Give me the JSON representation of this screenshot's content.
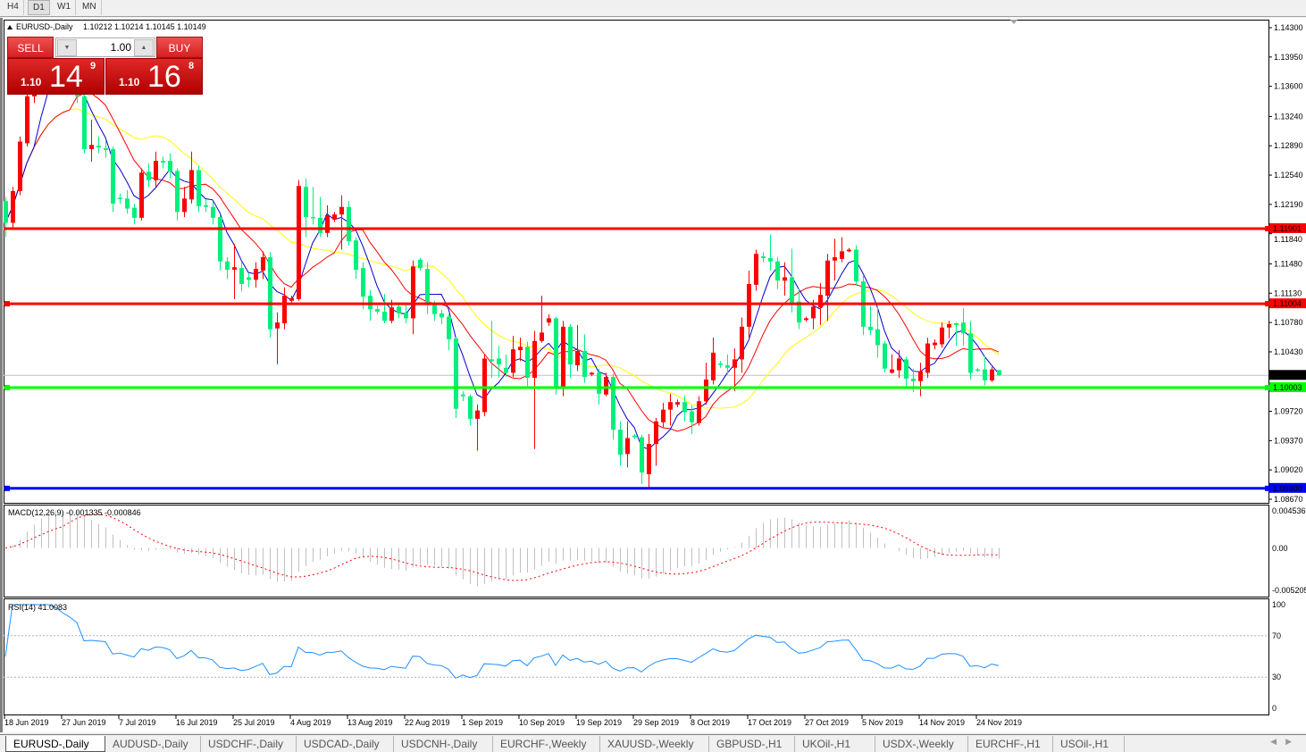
{
  "toolbar": {
    "timeframes": [
      {
        "label": "H4",
        "selected": false
      },
      {
        "label": "D1",
        "selected": true
      },
      {
        "label": "W1",
        "selected": false
      },
      {
        "label": "MN",
        "selected": false
      }
    ]
  },
  "chart": {
    "title": "EURUSD-,Daily",
    "ohlc_text": "1.10212 1.10214 1.10145 1.10149",
    "colors": {
      "bull": "#ff0000",
      "bear": "#00f07c",
      "ma_fast": "#0000cc",
      "ma_mid": "#ff0000",
      "ma_slow": "#ffff00",
      "macd_hist": "#c0c0c0",
      "macd_signal": "#ff0000",
      "rsi": "#1e90ff"
    },
    "price_axis": {
      "max": 1.143,
      "min": 1.0867,
      "ticks": [
        "1.14300",
        "1.13950",
        "1.13600",
        "1.13240",
        "1.12890",
        "1.12540",
        "1.12190",
        "1.11840",
        "1.11480",
        "1.11130",
        "1.10780",
        "1.10430",
        "1.09720",
        "1.09370",
        "1.09020",
        "1.08670"
      ]
    },
    "levels": [
      {
        "price": "1.11901",
        "color": "#ff0000",
        "text_color": "#ffffff"
      },
      {
        "price": "1.11004",
        "color": "#ff0000",
        "text_color": "#ffffff"
      },
      {
        "price": "1.10003",
        "color": "#00ff00",
        "text_color": "#ffffff"
      },
      {
        "price": "1.08800",
        "color": "#0000ff",
        "text_color": "#ffffff"
      }
    ],
    "bid": {
      "price": "1.10149",
      "color": "#000000"
    },
    "dates": [
      "18 Jun 2019",
      "27 Jun 2019",
      "7 Jul 2019",
      "16 Jul 2019",
      "25 Jul 2019",
      "4 Aug 2019",
      "13 Aug 2019",
      "22 Aug 2019",
      "1 Sep 2019",
      "10 Sep 2019",
      "19 Sep 2019",
      "29 Sep 2019",
      "8 Oct 2019",
      "17 Oct 2019",
      "27 Oct 2019",
      "5 Nov 2019",
      "14 Nov 2019",
      "24 Nov 2019"
    ],
    "macd": {
      "label": "MACD(12,26,9) -0.001335 -0.000846",
      "axis_top": "0.004536",
      "axis_zero": "0.00",
      "axis_bottom": "-0.005205",
      "max": 0.004536,
      "min": -0.005205
    },
    "rsi": {
      "label": "RSI(14) 41.0083",
      "axis": [
        "100",
        "70",
        "30",
        "0"
      ]
    }
  },
  "trade_panel": {
    "sell_label": "SELL",
    "buy_label": "BUY",
    "lot": "1.00",
    "sell": {
      "prefix": "1.10",
      "big": "14",
      "sup": "9"
    },
    "buy": {
      "prefix": "1.10",
      "big": "16",
      "sup": "8"
    }
  },
  "chart_data": {
    "type": "candlestick",
    "symbol": "EURUSD-",
    "timeframe": "Daily",
    "candles": [
      [
        1.1223,
        1.1228,
        1.118,
        1.1197
      ],
      [
        1.1197,
        1.124,
        1.119,
        1.1235
      ],
      [
        1.1235,
        1.13,
        1.123,
        1.1294
      ],
      [
        1.1292,
        1.1355,
        1.1288,
        1.1348
      ],
      [
        1.1348,
        1.1375,
        1.134,
        1.1362
      ],
      [
        1.1362,
        1.139,
        1.1355,
        1.1378
      ],
      [
        1.1378,
        1.1398,
        1.137,
        1.1388
      ],
      [
        1.1388,
        1.1395,
        1.1375,
        1.1383
      ],
      [
        1.1383,
        1.139,
        1.1365,
        1.1372
      ],
      [
        1.1372,
        1.1378,
        1.1355,
        1.1362
      ],
      [
        1.1362,
        1.1368,
        1.134,
        1.1348
      ],
      [
        1.1348,
        1.1352,
        1.128,
        1.1285
      ],
      [
        1.1285,
        1.132,
        1.127,
        1.129
      ],
      [
        1.1289,
        1.13,
        1.128,
        1.1287
      ],
      [
        1.1286,
        1.1295,
        1.1275,
        1.1284
      ],
      [
        1.1285,
        1.1288,
        1.121,
        1.122
      ],
      [
        1.1227,
        1.1232,
        1.122,
        1.1226
      ],
      [
        1.1226,
        1.1236,
        1.1208,
        1.1214
      ],
      [
        1.1215,
        1.122,
        1.1195,
        1.1203
      ],
      [
        1.1203,
        1.1262,
        1.12,
        1.1257
      ],
      [
        1.1258,
        1.1268,
        1.124,
        1.1248
      ],
      [
        1.1248,
        1.1282,
        1.124,
        1.1271
      ],
      [
        1.1271,
        1.1276,
        1.1262,
        1.1269
      ],
      [
        1.1271,
        1.128,
        1.125,
        1.1258
      ],
      [
        1.1259,
        1.1262,
        1.12,
        1.121
      ],
      [
        1.121,
        1.124,
        1.1204,
        1.1226
      ],
      [
        1.1225,
        1.1282,
        1.122,
        1.126
      ],
      [
        1.126,
        1.1265,
        1.121,
        1.1217
      ],
      [
        1.1218,
        1.1225,
        1.121,
        1.1216
      ],
      [
        1.1216,
        1.1222,
        1.1195,
        1.1203
      ],
      [
        1.1204,
        1.1206,
        1.114,
        1.1151
      ],
      [
        1.1151,
        1.1156,
        1.113,
        1.1141
      ],
      [
        1.1141,
        1.1172,
        1.1106,
        1.1144
      ],
      [
        1.1143,
        1.115,
        1.1115,
        1.1124
      ],
      [
        1.1132,
        1.1137,
        1.112,
        1.1129
      ],
      [
        1.1129,
        1.115,
        1.112,
        1.1142
      ],
      [
        1.114,
        1.1163,
        1.113,
        1.1156
      ],
      [
        1.1156,
        1.1162,
        1.106,
        1.107
      ],
      [
        1.1071,
        1.109,
        1.1028,
        1.1078
      ],
      [
        1.1077,
        1.112,
        1.107,
        1.111
      ],
      [
        1.1104,
        1.111,
        1.1102,
        1.1107
      ],
      [
        1.1106,
        1.1248,
        1.1104,
        1.1241
      ],
      [
        1.124,
        1.125,
        1.118,
        1.1204
      ],
      [
        1.1204,
        1.124,
        1.1195,
        1.1203
      ],
      [
        1.1203,
        1.1228,
        1.118,
        1.1185
      ],
      [
        1.1185,
        1.1218,
        1.118,
        1.1206
      ],
      [
        1.1201,
        1.121,
        1.1198,
        1.1207
      ],
      [
        1.1207,
        1.123,
        1.1165,
        1.1216
      ],
      [
        1.1216,
        1.1223,
        1.117,
        1.1175
      ],
      [
        1.1176,
        1.118,
        1.113,
        1.1141
      ],
      [
        1.1143,
        1.115,
        1.1094,
        1.1109
      ],
      [
        1.111,
        1.1117,
        1.108,
        1.1094
      ],
      [
        1.1094,
        1.1098,
        1.1088,
        1.1091
      ],
      [
        1.1091,
        1.1112,
        1.1077,
        1.108
      ],
      [
        1.108,
        1.1105,
        1.1077,
        1.1096
      ],
      [
        1.1097,
        1.1102,
        1.1083,
        1.1089
      ],
      [
        1.109,
        1.1102,
        1.1077,
        1.1083
      ],
      [
        1.1083,
        1.1152,
        1.1064,
        1.1145
      ],
      [
        1.1153,
        1.1155,
        1.114,
        1.1143
      ],
      [
        1.1142,
        1.115,
        1.1088,
        1.1099
      ],
      [
        1.1099,
        1.1104,
        1.108,
        1.1088
      ],
      [
        1.1089,
        1.1093,
        1.1076,
        1.1084
      ],
      [
        1.1085,
        1.1088,
        1.1045,
        1.1058
      ],
      [
        1.1059,
        1.106,
        1.0964,
        1.0975
      ],
      [
        1.0992,
        1.0996,
        1.0984,
        1.099
      ],
      [
        1.099,
        1.0992,
        1.0955,
        1.0963
      ],
      [
        1.0963,
        1.098,
        1.0925,
        1.0973
      ],
      [
        1.0971,
        1.104,
        1.0966,
        1.1035
      ],
      [
        1.1034,
        1.108,
        1.1012,
        1.1032
      ],
      [
        1.1035,
        1.105,
        1.1012,
        1.1028
      ],
      [
        1.1024,
        1.104,
        1.1013,
        1.1018
      ],
      [
        1.1018,
        1.1062,
        1.1013,
        1.1046
      ],
      [
        1.1045,
        1.106,
        1.1032,
        1.1049
      ],
      [
        1.1049,
        1.1055,
        1.1,
        1.1012
      ],
      [
        1.1012,
        1.1068,
        1.0927,
        1.1056
      ],
      [
        1.1056,
        1.111,
        1.1054,
        1.1066
      ],
      [
        1.1078,
        1.1088,
        1.1074,
        1.1083
      ],
      [
        1.1083,
        1.1085,
        1.0992,
        1.1001
      ],
      [
        1.1001,
        1.108,
        1.099,
        1.1073
      ],
      [
        1.1073,
        1.1076,
        1.1012,
        1.1028
      ],
      [
        1.1027,
        1.1075,
        1.102,
        1.1044
      ],
      [
        1.1044,
        1.1064,
        1.1006,
        1.1013
      ],
      [
        1.1016,
        1.1019,
        1.1014,
        1.1018
      ],
      [
        1.1018,
        1.1023,
        1.098,
        1.0993
      ],
      [
        1.0992,
        1.1018,
        1.099,
        1.1013
      ],
      [
        1.1013,
        1.1017,
        1.0938,
        1.095
      ],
      [
        1.095,
        1.096,
        1.0907,
        1.092
      ],
      [
        1.0921,
        1.096,
        1.0905,
        1.094
      ],
      [
        1.0943,
        1.0945,
        1.0939,
        1.0941
      ],
      [
        1.0941,
        1.0944,
        1.0885,
        1.0899
      ],
      [
        1.0897,
        1.0945,
        1.0879,
        1.0933
      ],
      [
        1.0933,
        1.0964,
        1.0907,
        1.096
      ],
      [
        1.0959,
        1.0982,
        1.0953,
        1.0974
      ],
      [
        1.0974,
        1.0993,
        1.0955,
        1.0983
      ],
      [
        1.098,
        1.0986,
        1.0977,
        1.0983
      ],
      [
        1.0983,
        1.0991,
        1.096,
        1.0971
      ],
      [
        1.0972,
        1.0979,
        1.0945,
        1.0959
      ],
      [
        1.0958,
        1.099,
        1.0955,
        1.0984
      ],
      [
        1.0984,
        1.103,
        1.098,
        1.101
      ],
      [
        1.1009,
        1.106,
        1.1004,
        1.1042
      ],
      [
        1.1029,
        1.1032,
        1.1024,
        1.1028
      ],
      [
        1.1027,
        1.104,
        1.1016,
        1.1024
      ],
      [
        1.1024,
        1.1047,
        1.0996,
        1.1034
      ],
      [
        1.1034,
        1.1084,
        1.1018,
        1.1073
      ],
      [
        1.1073,
        1.114,
        1.106,
        1.1124
      ],
      [
        1.1123,
        1.1165,
        1.1116,
        1.116
      ],
      [
        1.1157,
        1.1162,
        1.115,
        1.1155
      ],
      [
        1.1155,
        1.1183,
        1.114,
        1.1151
      ],
      [
        1.1151,
        1.1156,
        1.1118,
        1.1128
      ],
      [
        1.1128,
        1.115,
        1.111,
        1.1132
      ],
      [
        1.1132,
        1.1166,
        1.109,
        1.1102
      ],
      [
        1.1103,
        1.1118,
        1.107,
        1.1078
      ],
      [
        1.1081,
        1.1085,
        1.1079,
        1.1083
      ],
      [
        1.1083,
        1.1105,
        1.107,
        1.1097
      ],
      [
        1.1096,
        1.1125,
        1.1075,
        1.1111
      ],
      [
        1.111,
        1.116,
        1.108,
        1.1152
      ],
      [
        1.1152,
        1.1178,
        1.1128,
        1.1156
      ],
      [
        1.1154,
        1.118,
        1.115,
        1.1163
      ],
      [
        1.1163,
        1.1167,
        1.1162,
        1.1165
      ],
      [
        1.1165,
        1.117,
        1.1122,
        1.1127
      ],
      [
        1.1127,
        1.1135,
        1.1063,
        1.1073
      ],
      [
        1.1073,
        1.1098,
        1.1063,
        1.1069
      ],
      [
        1.107,
        1.1098,
        1.1036,
        1.1051
      ],
      [
        1.1053,
        1.1056,
        1.1018,
        1.1023
      ],
      [
        1.1018,
        1.104,
        1.1017,
        1.1022
      ],
      [
        1.1021,
        1.1045,
        1.1012,
        1.1035
      ],
      [
        1.1034,
        1.1037,
        1.1,
        1.1011
      ],
      [
        1.1011,
        1.1023,
        1.0995,
        1.1008
      ],
      [
        1.1008,
        1.103,
        1.099,
        1.102
      ],
      [
        1.1018,
        1.106,
        1.1012,
        1.1053
      ],
      [
        1.1051,
        1.1058,
        1.1046,
        1.1054
      ],
      [
        1.1052,
        1.1078,
        1.1048,
        1.1072
      ],
      [
        1.1072,
        1.108,
        1.1059,
        1.1076
      ],
      [
        1.1077,
        1.1078,
        1.105,
        1.1075
      ],
      [
        1.1078,
        1.1095,
        1.105,
        1.1065
      ],
      [
        1.1065,
        1.108,
        1.101,
        1.1018
      ],
      [
        1.1022,
        1.1024,
        1.1019,
        1.1021
      ],
      [
        1.1022,
        1.1038,
        1.1003,
        1.1009
      ],
      [
        1.1009,
        1.1025,
        1.1007,
        1.1022
      ],
      [
        1.10212,
        1.10214,
        1.10145,
        1.10149
      ]
    ],
    "ylim": [
      1.0867,
      1.143
    ]
  },
  "tabs": [
    {
      "label": "EURUSD-,Daily",
      "active": true
    },
    {
      "label": "AUDUSD-,Daily"
    },
    {
      "label": "USDCHF-,Daily"
    },
    {
      "label": "USDCAD-,Daily"
    },
    {
      "label": "USDCNH-,Daily"
    },
    {
      "label": "EURCHF-,Weekly"
    },
    {
      "label": "XAUUSD-,Weekly"
    },
    {
      "label": "GBPUSD-,H1"
    },
    {
      "label": "UKOil-,H1"
    },
    {
      "label": "USDX-,Weekly"
    },
    {
      "label": "EURCHF-,H1"
    },
    {
      "label": "USOil-,H1"
    }
  ],
  "tab_nav": {
    "prev": "◀",
    "next": "▶"
  }
}
